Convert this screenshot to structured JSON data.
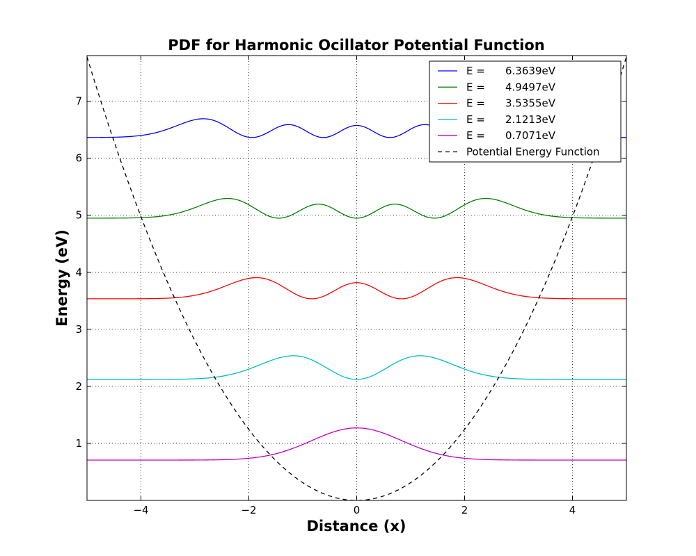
{
  "chart_data": {
    "type": "line",
    "title": "PDF for Harmonic Ocillator Potential Function",
    "xlabel": "Distance (x)",
    "ylabel": "Energy (eV)",
    "xlim": [
      -5,
      5
    ],
    "ylim": [
      0,
      7.8
    ],
    "x_ticks": [
      -4,
      -2,
      0,
      2,
      4
    ],
    "x_tick_labels": [
      "−4",
      "−2",
      "0",
      "2",
      "4"
    ],
    "y_ticks": [
      1,
      2,
      3,
      4,
      5,
      6,
      7
    ],
    "y_tick_labels": [
      "1",
      "2",
      "3",
      "4",
      "5",
      "6",
      "7"
    ],
    "grid": true,
    "legend_position": "top-right",
    "series": [
      {
        "label_prefix": "E =",
        "label_value": "6.3639eV",
        "energy": 6.3639,
        "n": 4,
        "color": "#0000ff",
        "dash": "solid"
      },
      {
        "label_prefix": "E =",
        "label_value": "4.9497eV",
        "energy": 4.9497,
        "n": 3,
        "color": "#008000",
        "dash": "solid"
      },
      {
        "label_prefix": "E =",
        "label_value": "3.5355eV",
        "energy": 3.5355,
        "n": 2,
        "color": "#ff0000",
        "dash": "solid"
      },
      {
        "label_prefix": "E =",
        "label_value": "2.1213eV",
        "energy": 2.1213,
        "n": 1,
        "color": "#00bfbf",
        "dash": "solid"
      },
      {
        "label_prefix": "E =",
        "label_value": "0.7071eV",
        "energy": 0.7071,
        "n": 0,
        "color": "#bf00bf",
        "dash": "solid"
      },
      {
        "label_prefix": "Potential Energy Function",
        "label_value": "",
        "color": "#000000",
        "dash": "dashed",
        "potential_coefficient": 0.3111
      }
    ]
  }
}
